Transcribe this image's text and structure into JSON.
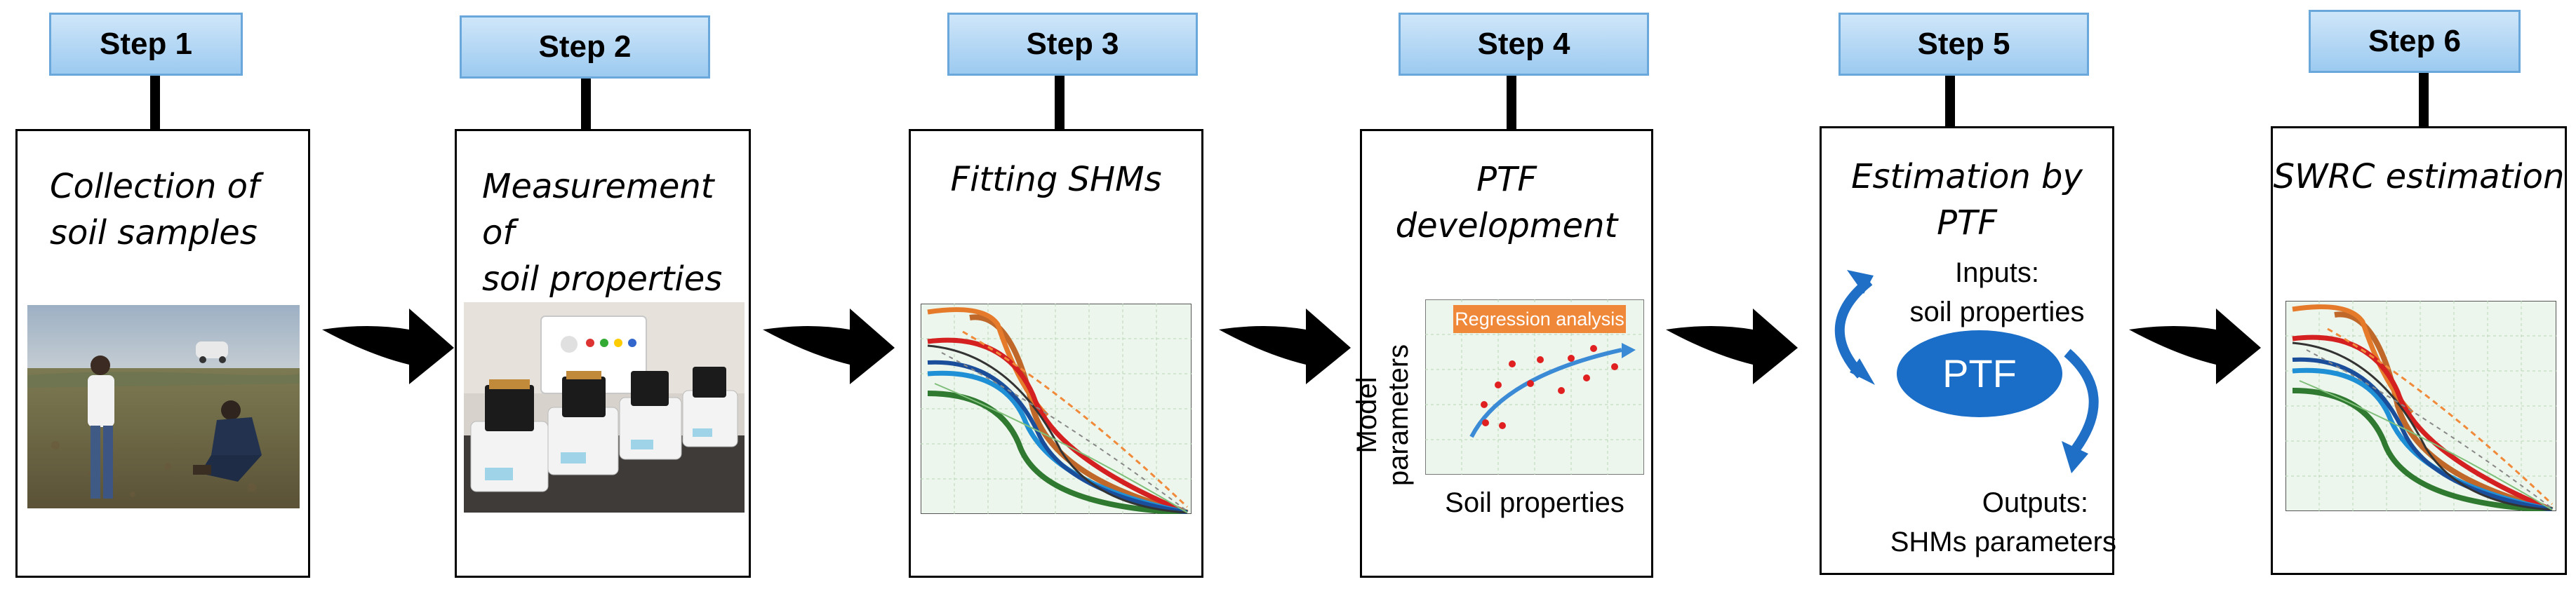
{
  "steps": [
    {
      "label": "Step 1",
      "title_line1": "Collection of",
      "title_line2": "soil samples",
      "icon": "field-sampling-photo"
    },
    {
      "label": "Step 2",
      "title_line1": "Measurement of",
      "title_line2": "soil properties",
      "icon": "lab-instruments-photo"
    },
    {
      "label": "Step 3",
      "title": "Fitting SHMs",
      "icon": "retention-curves-chart"
    },
    {
      "label": "Step 4",
      "title": "PTF development",
      "y_axis_label": "Model parameters",
      "x_axis_label": "Soil properties",
      "regression_label": "Regression analysis"
    },
    {
      "label": "Step 5",
      "title": "Estimation by PTF",
      "inputs_line1": "Inputs:",
      "inputs_line2": "soil properties",
      "ptf_label": "PTF",
      "outputs_line1": "Outputs:",
      "outputs_line2": "SHMs parameters"
    },
    {
      "label": "Step 6",
      "title": "SWRC estimation",
      "icon": "retention-curves-chart"
    }
  ],
  "colors": {
    "step_label_fill": "#a9d1f2",
    "step_label_border": "#6aa8dc",
    "ptf_ellipse": "#1a6ec8",
    "curve_arrow": "#1f6fc7",
    "regression_badge": "#f0883a",
    "chart_background": "#edf6ec"
  }
}
